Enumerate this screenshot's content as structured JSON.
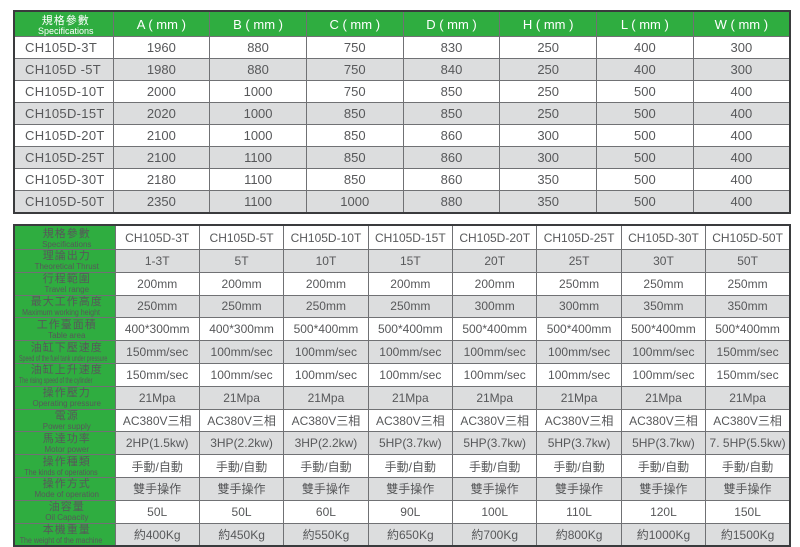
{
  "colors": {
    "header_green": "#2fad40",
    "stripe_gray": "#dcddde",
    "row_white": "#ffffff",
    "text_gray": "#57585a",
    "header_text_white": "#ffffff",
    "grid_line": "#707174",
    "outer_border": "#3a3b3d"
  },
  "dimensions_table": {
    "corner_label_zh": "規格參數",
    "corner_label_en": "Specifications",
    "columns": [
      "A ( mm )",
      "B ( mm )",
      "C ( mm )",
      "D ( mm )",
      "H ( mm )",
      "L ( mm )",
      "W ( mm )"
    ],
    "rows": [
      {
        "model": "CH105D-3T",
        "values": [
          "1960",
          "880",
          "750",
          "830",
          "250",
          "400",
          "300"
        ]
      },
      {
        "model": "CH105D -5T",
        "values": [
          "1980",
          "880",
          "750",
          "840",
          "250",
          "400",
          "300"
        ]
      },
      {
        "model": "CH105D-10T",
        "values": [
          "2000",
          "1000",
          "750",
          "850",
          "250",
          "500",
          "400"
        ]
      },
      {
        "model": "CH105D-15T",
        "values": [
          "2020",
          "1000",
          "850",
          "850",
          "250",
          "500",
          "400"
        ]
      },
      {
        "model": "CH105D-20T",
        "values": [
          "2100",
          "1000",
          "850",
          "860",
          "300",
          "500",
          "400"
        ]
      },
      {
        "model": "CH105D-25T",
        "values": [
          "2100",
          "1100",
          "850",
          "860",
          "300",
          "500",
          "400"
        ]
      },
      {
        "model": "CH105D-30T",
        "values": [
          "2180",
          "1100",
          "850",
          "860",
          "350",
          "500",
          "400"
        ]
      },
      {
        "model": "CH105D-50T",
        "values": [
          "2350",
          "1100",
          "1000",
          "880",
          "350",
          "500",
          "400"
        ]
      }
    ]
  },
  "specifications_table": {
    "corner_label_zh": "規格參數",
    "corner_label_en": "Specifications",
    "columns": [
      "CH105D-3T",
      "CH105D-5T",
      "CH105D-10T",
      "CH105D-15T",
      "CH105D-20T",
      "CH105D-25T",
      "CH105D-30T",
      "CH105D-50T"
    ],
    "rows": [
      {
        "zh": "理論出力",
        "en": "Theoretical Thrust",
        "values": [
          "1-3T",
          "5T",
          "10T",
          "15T",
          "20T",
          "25T",
          "30T",
          "50T"
        ]
      },
      {
        "zh": "行程範圍",
        "en": "Travel range",
        "values": [
          "200mm",
          "200mm",
          "200mm",
          "200mm",
          "200mm",
          "250mm",
          "250mm",
          "250mm"
        ]
      },
      {
        "zh": "最大工作高度",
        "en": "Maximum working height",
        "values": [
          "250mm",
          "250mm",
          "250mm",
          "250mm",
          "300mm",
          "300mm",
          "350mm",
          "350mm"
        ]
      },
      {
        "zh": "工作臺面積",
        "en": "Table area",
        "values": [
          "400*300mm",
          "400*300mm",
          "500*400mm",
          "500*400mm",
          "500*400mm",
          "500*400mm",
          "500*400mm",
          "500*400mm"
        ]
      },
      {
        "zh": "油缸下壓速度",
        "en": "Speed of the fuel tank under pressure",
        "values": [
          "150mm/sec",
          "100mm/sec",
          "100mm/sec",
          "100mm/sec",
          "100mm/sec",
          "100mm/sec",
          "100mm/sec",
          "150mm/sec"
        ]
      },
      {
        "zh": "油缸上升速度",
        "en": "The rising speed of the cylinder",
        "values": [
          "150mm/sec",
          "100mm/sec",
          "100mm/sec",
          "100mm/sec",
          "100mm/sec",
          "100mm/sec",
          "100mm/sec",
          "150mm/sec"
        ]
      },
      {
        "zh": "操作壓力",
        "en": "Operating pressure",
        "values": [
          "21Mpa",
          "21Mpa",
          "21Mpa",
          "21Mpa",
          "21Mpa",
          "21Mpa",
          "21Mpa",
          "21Mpa"
        ]
      },
      {
        "zh": "電源",
        "en": "Power supply",
        "values": [
          "AC380V三相",
          "AC380V三相",
          "AC380V三相",
          "AC380V三相",
          "AC380V三相",
          "AC380V三相",
          "AC380V三相",
          "AC380V三相"
        ]
      },
      {
        "zh": "馬達功率",
        "en": "Motor power",
        "values": [
          "2HP(1.5kw)",
          "3HP(2.2kw)",
          "3HP(2.2kw)",
          "5HP(3.7kw)",
          "5HP(3.7kw)",
          "5HP(3.7kw)",
          "5HP(3.7kw)",
          "7. 5HP(5.5kw)"
        ]
      },
      {
        "zh": "操作種類",
        "en": "The kinds of operations",
        "values": [
          "手動/自動",
          "手動/自動",
          "手動/自動",
          "手動/自動",
          "手動/自動",
          "手動/自動",
          "手動/自動",
          "手動/自動"
        ]
      },
      {
        "zh": "操作方式",
        "en": "Mode of operation",
        "values": [
          "雙手操作",
          "雙手操作",
          "雙手操作",
          "雙手操作",
          "雙手操作",
          "雙手操作",
          "雙手操作",
          "雙手操作"
        ]
      },
      {
        "zh": "油容量",
        "en": "Oil Capacity",
        "values": [
          "50L",
          "50L",
          "60L",
          "90L",
          "100L",
          "110L",
          "120L",
          "150L"
        ]
      },
      {
        "zh": "本機重量",
        "en": "The weight of the machine",
        "values": [
          "約400Kg",
          "約450Kg",
          "約550Kg",
          "約650Kg",
          "約700Kg",
          "約800Kg",
          "約1000Kg",
          "約1500Kg"
        ]
      }
    ]
  }
}
